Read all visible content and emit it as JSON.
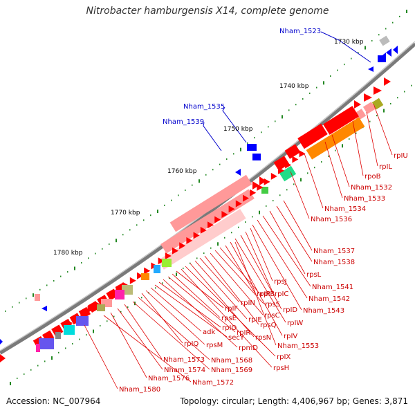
{
  "title": "Nitrobacter hamburgensis X14, complete genome",
  "footer": {
    "accession": "Accession: NC_007964",
    "summary": "Topology: circular; Length: 4,406,967 bp; Genes: 3,871"
  },
  "colors": {
    "backbone": "#7a7a7a",
    "forward_gene": "#ff0000",
    "reverse_gene": "#0000ff",
    "rna_gene": "#ff9999",
    "operon_highlight": "#ff8800",
    "label_line_red": "#e00000",
    "label_line_blue": "#0000cc",
    "tick_minor": "#228822"
  },
  "scale_labels": [
    "1730 kbp",
    "1740 kbp",
    "1750 kbp",
    "1760 kbp",
    "1770 kbp",
    "1780 kbp"
  ],
  "blue_labels": [
    "Nham_1523",
    "Nham_1535",
    "Nham_1539"
  ],
  "red_labels": [
    "rpIU",
    "rpIL",
    "rpoB",
    "Nham_1532",
    "Nham_1533",
    "Nham_1534",
    "Nham_1536",
    "Nham_1537",
    "Nham_1538",
    "rpsL",
    "Nham_1541",
    "Nham_1542",
    "Nham_1543",
    "rpsJ",
    "rpIC",
    "rpID",
    "rpIW",
    "rpIV",
    "rpIP",
    "rpIB",
    "rpsS",
    "rpsC",
    "rpsQ",
    "rpIN",
    "rpIE",
    "rpsN",
    "rpIX",
    "rpsH",
    "rpIF",
    "rpsE",
    "rpIR",
    "rpmD",
    "rpIO",
    "secY",
    "adk",
    "rpsM",
    "rpIQ",
    "Nham_1553",
    "Nham_1568",
    "Nham_1569",
    "Nham_1573",
    "Nham_1574",
    "Nham_1576",
    "Nham_1572",
    "Nham_1580"
  ]
}
